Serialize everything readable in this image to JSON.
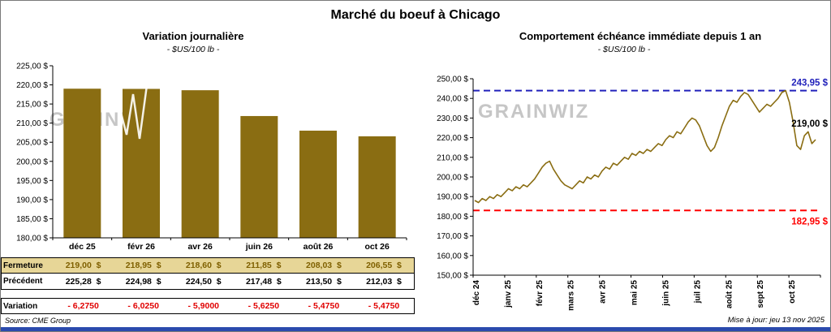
{
  "page_title": "Marché du boeuf à Chicago",
  "source": "Source: CME Group",
  "updated": "Mise à jour: jeu 13 nov 2025",
  "watermark": "GRAINWIZ",
  "accent_colors": {
    "bottom_bar": "#2a4aad",
    "bar_fill": "#8a6d12",
    "table_highlight_bg": "#e7d697",
    "table_highlight_text": "#7f6000",
    "negative": "#e00000",
    "max_line": "#2222bb",
    "min_line": "#ff0000"
  },
  "table": {
    "rows": [
      {
        "label": "Fermeture",
        "values": [
          "219,00  $",
          "218,95  $",
          "218,60  $",
          "211,85  $",
          "208,03  $",
          "206,55  $"
        ]
      },
      {
        "label": "Précédent",
        "values": [
          "225,28  $",
          "224,98  $",
          "224,50  $",
          "217,48  $",
          "213,50  $",
          "212,03  $"
        ]
      },
      {
        "label": "Variation",
        "values": [
          "- 6,2750",
          "- 6,0250",
          "- 5,9000",
          "- 5,6250",
          "- 5,4750",
          "- 5,4750"
        ]
      }
    ]
  },
  "chart_data": [
    {
      "type": "bar",
      "title": "Variation journalière",
      "subtitle": "- $US/100 lb -",
      "categories": [
        "déc 25",
        "févr 26",
        "avr 26",
        "juin 26",
        "août 26",
        "oct 26"
      ],
      "values": [
        219.0,
        218.95,
        218.6,
        211.85,
        208.03,
        206.55
      ],
      "ylim": [
        180,
        225
      ],
      "ytick_step": 5,
      "grid": false,
      "legend": "none"
    },
    {
      "type": "line",
      "title": "Comportement échéance immédiate depuis 1 an",
      "subtitle": "- $US/100 lb -",
      "x_labels": [
        "déc 24",
        "janv 25",
        "févr 25",
        "mars 25",
        "avr 25",
        "mai 25",
        "juin 25",
        "juil 25",
        "août 25",
        "sept 25",
        "oct 25"
      ],
      "ylim": [
        150,
        250
      ],
      "ytick_step": 10,
      "grid": false,
      "legend": "none",
      "annotations": {
        "max": {
          "value": 243.95,
          "label": "243,95 $"
        },
        "min": {
          "value": 182.95,
          "label": "182,95 $"
        },
        "last": {
          "value": 219.0,
          "label": "219,00 $"
        }
      },
      "values": [
        188,
        187,
        189,
        188,
        190,
        189,
        191,
        190,
        192,
        194,
        193,
        195,
        194,
        196,
        195,
        197,
        199,
        202,
        205,
        207,
        208,
        204,
        201,
        198,
        196,
        195,
        194,
        196,
        198,
        197,
        200,
        199,
        201,
        200,
        203,
        205,
        204,
        207,
        206,
        208,
        210,
        209,
        212,
        211,
        213,
        212,
        214,
        213,
        215,
        217,
        216,
        219,
        221,
        220,
        223,
        222,
        225,
        228,
        230,
        229,
        226,
        221,
        216,
        213,
        215,
        220,
        226,
        231,
        236,
        239,
        238,
        241,
        243,
        242,
        239,
        236,
        233,
        235,
        237,
        236,
        238,
        240,
        243,
        243.95,
        238,
        228,
        216,
        214,
        221,
        223,
        217,
        219
      ]
    }
  ]
}
